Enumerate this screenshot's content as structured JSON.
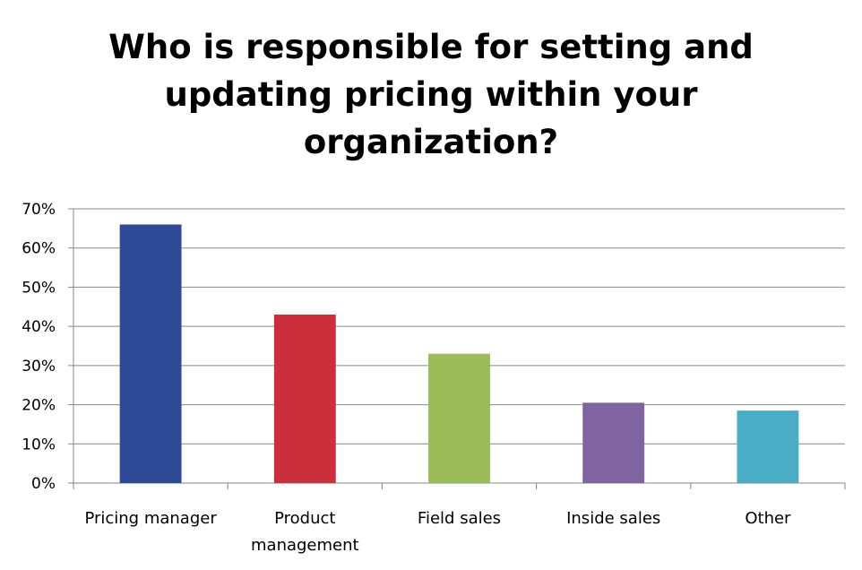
{
  "chart_data": {
    "type": "bar",
    "title": [
      "Who is responsible for setting and",
      "updating pricing within your",
      "organization?"
    ],
    "categories": [
      [
        "Pricing manager"
      ],
      [
        "Product",
        "management"
      ],
      [
        "Field sales"
      ],
      [
        "Inside sales"
      ],
      [
        "Other"
      ]
    ],
    "values": [
      66,
      43,
      33,
      20.5,
      18.5
    ],
    "bar_colors": [
      "#2E4A96",
      "#CC2F3C",
      "#9BBB59",
      "#8064A2",
      "#4BACC6"
    ],
    "yticks": [
      "0%",
      "10%",
      "20%",
      "30%",
      "40%",
      "50%",
      "60%",
      "70%"
    ],
    "ylim": [
      0,
      70
    ],
    "grid": true,
    "legend": "none",
    "xlabel": "",
    "ylabel": ""
  }
}
